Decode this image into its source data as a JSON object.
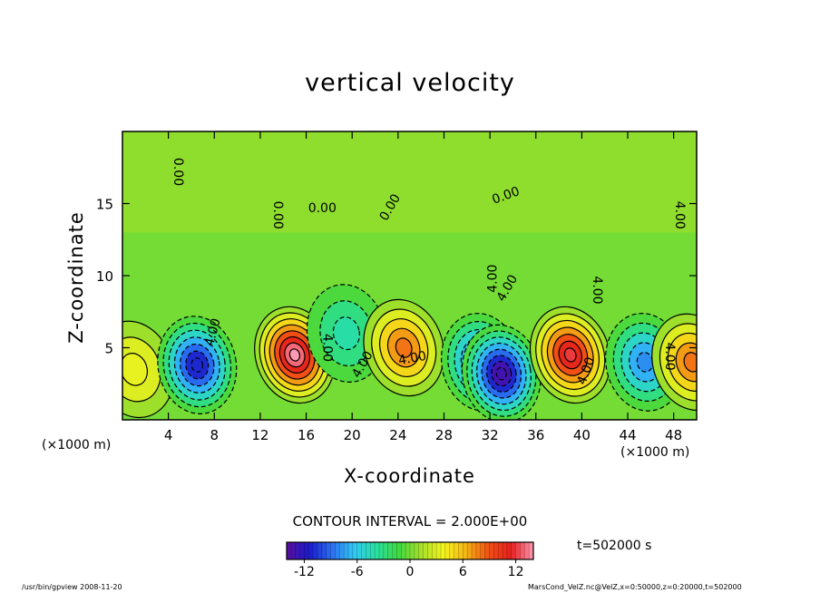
{
  "chart_data": {
    "type": "heatmap",
    "title": "vertical velocity",
    "xlabel": "X-coordinate",
    "ylabel": "Z-coordinate",
    "x_unit": "(×1000 m)",
    "y_unit": "(×1000 m)",
    "xlim": [
      0,
      50
    ],
    "ylim": [
      0,
      20
    ],
    "x_ticks": [
      4,
      8,
      12,
      16,
      20,
      24,
      28,
      32,
      36,
      40,
      44,
      48
    ],
    "y_ticks": [
      5,
      10,
      15
    ],
    "contour_interval_label": "CONTOUR INTERVAL = 2.000E+00",
    "contour_labels": [
      "0.00",
      "0.00",
      "0.00",
      "0.00",
      "0.00",
      "4.00",
      "4.00",
      "4.00",
      "4.00",
      "4.00",
      "4.00",
      "4.00",
      "4.00",
      "4.00",
      "4.00"
    ],
    "colorbar": {
      "ticks": [
        -12,
        -6,
        0,
        6,
        12
      ],
      "range": [
        -14,
        14
      ],
      "colors": [
        "#5a0fa0",
        "#1a1ac8",
        "#2a6ef0",
        "#32c8f5",
        "#28e0a0",
        "#40d840",
        "#a8e028",
        "#f5f51e",
        "#f5b414",
        "#f05014",
        "#e61e1e",
        "#ff9ab4"
      ]
    },
    "features": [
      {
        "x": 1,
        "z": 3.5,
        "w": 3.4
      },
      {
        "x": 6.5,
        "z": 3.8,
        "w": -11
      },
      {
        "x": 15,
        "z": 4.5,
        "w": 14
      },
      {
        "x": 19.5,
        "z": 6,
        "w": -4
      },
      {
        "x": 24.5,
        "z": 5,
        "w": 8
      },
      {
        "x": 31.2,
        "z": 4,
        "w": -10
      },
      {
        "x": 33,
        "z": 3.2,
        "w": -13
      },
      {
        "x": 39,
        "z": 4.5,
        "w": 12
      },
      {
        "x": 45.5,
        "z": 4,
        "w": -8
      },
      {
        "x": 49.6,
        "z": 4,
        "w": 8
      }
    ]
  },
  "time_label": "t=502000 s",
  "footer_left": "/usr/bin/gpview  2008-11-20",
  "footer_right": "MarsCond_VelZ.nc@VelZ,x=0:50000,z=0:20000,t=502000"
}
